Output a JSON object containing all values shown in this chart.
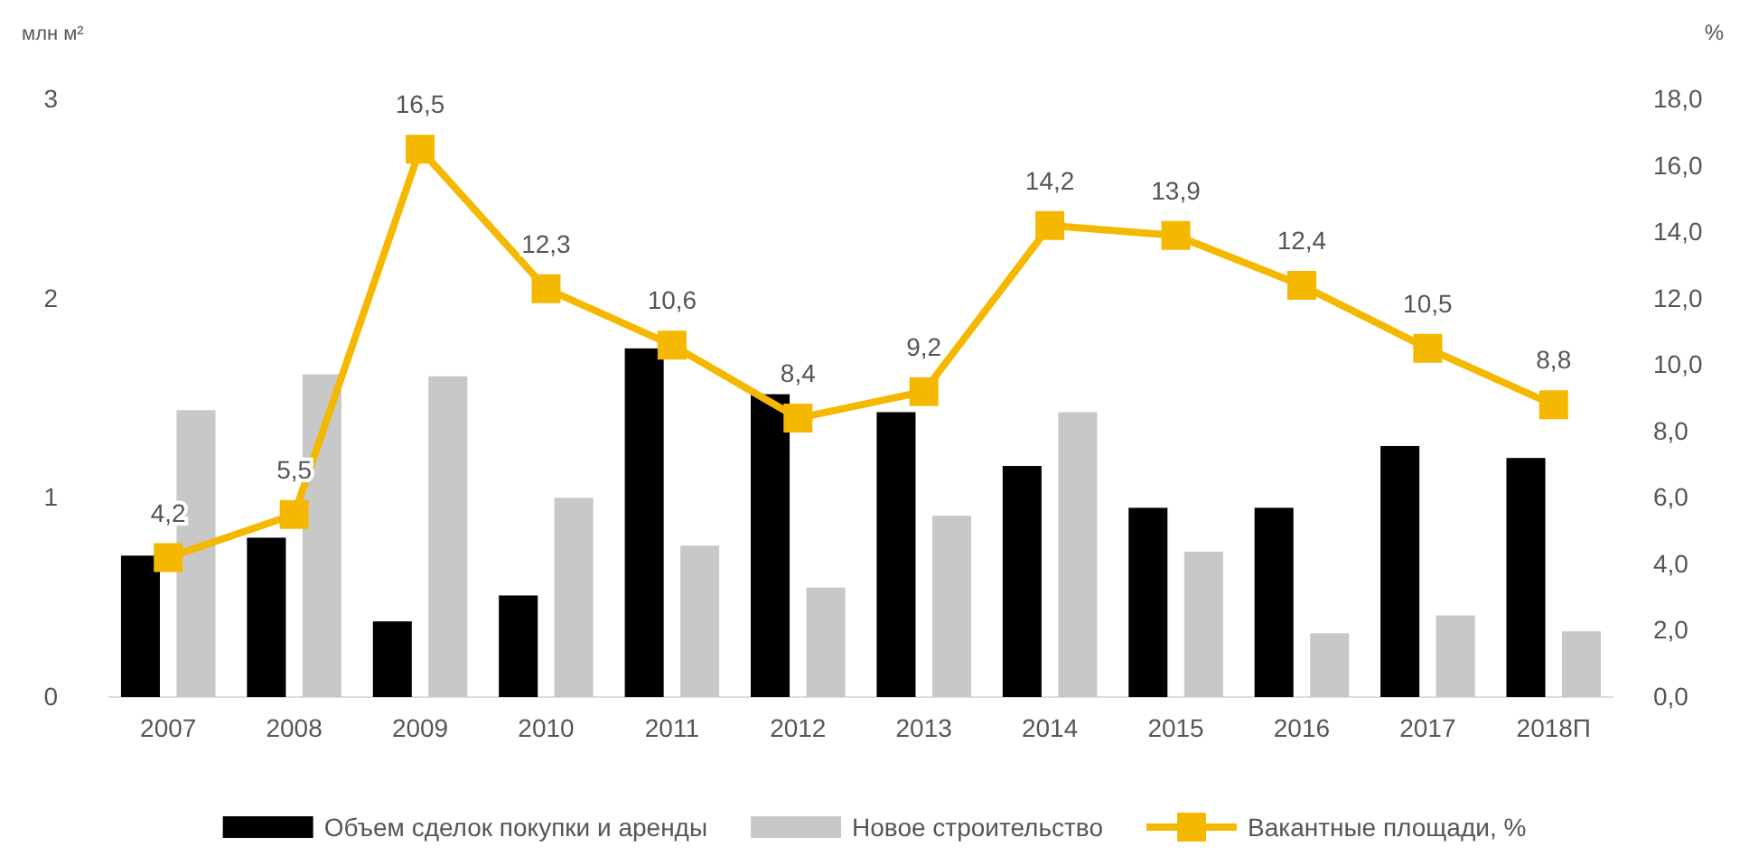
{
  "chart_data": {
    "type": "bar",
    "ylabel": "млн м²",
    "y2label": "%",
    "categories": [
      "2007",
      "2008",
      "2009",
      "2010",
      "2011",
      "2012",
      "2013",
      "2014",
      "2015",
      "2016",
      "2017",
      "2018П"
    ],
    "series": [
      {
        "name": "Объем сделок покупки и аренды",
        "color": "#000000",
        "values": [
          0.71,
          0.8,
          0.38,
          0.51,
          1.75,
          1.52,
          1.43,
          1.16,
          0.95,
          0.95,
          1.26,
          1.2
        ]
      },
      {
        "name": "Новое строительство",
        "color": "#c8c8c8",
        "values": [
          1.44,
          1.62,
          1.61,
          1.0,
          0.76,
          0.55,
          0.91,
          1.43,
          0.73,
          0.32,
          0.41,
          0.33
        ]
      },
      {
        "name": "Вакантные площади, %",
        "type": "line",
        "axis": "y2",
        "color": "#f5b800",
        "marker": "square",
        "values": [
          4.2,
          5.5,
          16.5,
          12.3,
          10.6,
          8.4,
          9.2,
          14.2,
          13.9,
          12.4,
          10.5,
          8.8
        ],
        "value_labels": [
          "4,2",
          "5,5",
          "16,5",
          "12,3",
          "10,6",
          "8,4",
          "9,2",
          "14,2",
          "13,9",
          "12,4",
          "10,5",
          "8,8"
        ]
      }
    ],
    "ylim": [
      0,
      3
    ],
    "yticks": [
      0,
      1,
      2,
      3
    ],
    "y2lim": [
      0,
      18
    ],
    "y2ticks": [
      {
        "value": 0,
        "label": "0,0"
      },
      {
        "value": 2,
        "label": "2,0"
      },
      {
        "value": 4,
        "label": "4,0"
      },
      {
        "value": 6,
        "label": "6,0"
      },
      {
        "value": 8,
        "label": "8,0"
      },
      {
        "value": 10,
        "label": "10,0"
      },
      {
        "value": 12,
        "label": "12,0"
      },
      {
        "value": 14,
        "label": "14,0"
      },
      {
        "value": 16,
        "label": "16,0"
      },
      {
        "value": 18,
        "label": "18,0"
      }
    ],
    "grid": false,
    "legend": "bottom"
  }
}
